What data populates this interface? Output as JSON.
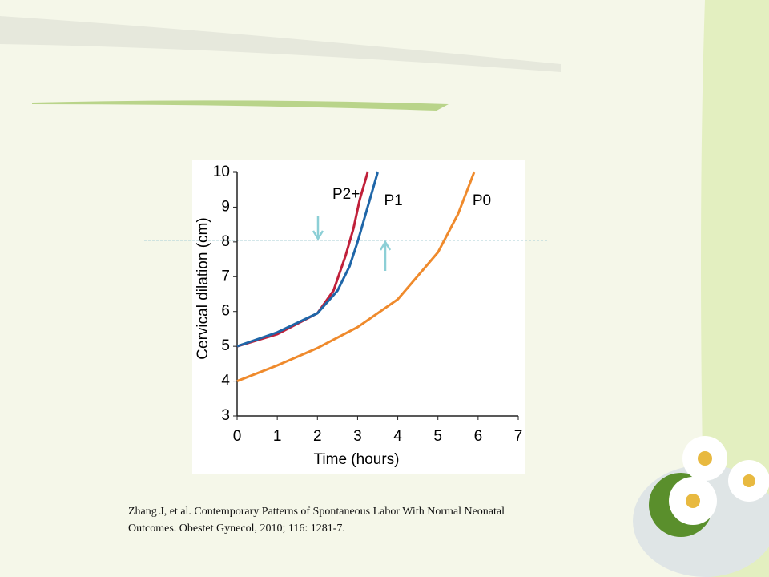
{
  "chart_data": {
    "type": "line",
    "xlabel": "Time (hours)",
    "ylabel": "Cervical dilation (cm)",
    "xlim": [
      0,
      7
    ],
    "ylim": [
      3,
      10
    ],
    "xticks": [
      0,
      1,
      2,
      3,
      4,
      5,
      6,
      7
    ],
    "yticks": [
      3,
      4,
      5,
      6,
      7,
      8,
      9,
      10
    ],
    "series": [
      {
        "name": "P2+",
        "color": "#c0203a",
        "x": [
          0,
          1,
          2,
          2.4,
          2.7,
          2.9,
          3.05,
          3.25
        ],
        "values": [
          5,
          5.35,
          5.95,
          6.6,
          7.6,
          8.4,
          9.2,
          10
        ]
      },
      {
        "name": "P1",
        "color": "#1f66a8",
        "x": [
          0,
          1,
          2,
          2.5,
          2.8,
          3.0,
          3.2,
          3.5
        ],
        "values": [
          5,
          5.4,
          5.95,
          6.6,
          7.3,
          8.0,
          8.8,
          10
        ]
      },
      {
        "name": "P0",
        "color": "#ef8a2c",
        "x": [
          0,
          1,
          2,
          3,
          4,
          5,
          5.5,
          5.9
        ],
        "values": [
          4,
          4.45,
          4.95,
          5.55,
          6.35,
          7.7,
          8.8,
          10
        ]
      }
    ]
  },
  "citation": [
    "Zhang J, et al. Contemporary Patterns of Spontaneous Labor With Normal Neonatal",
    "Outcomes. Obestet Gynecol, 2010; 116: 1281-7."
  ]
}
